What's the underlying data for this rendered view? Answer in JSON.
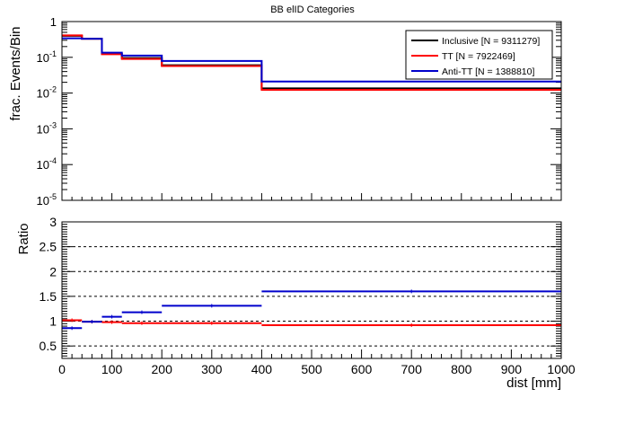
{
  "title": "BB elID Categories",
  "chart_data": [
    {
      "type": "line",
      "subtype": "step-histogram",
      "title": "BB elID Categories",
      "ylabel": "frac. Events/Bin",
      "xlabel": "",
      "yscale": "log",
      "ylim": [
        1e-05,
        1
      ],
      "xlim": [
        0,
        1000
      ],
      "y_tick_labels": [
        "1",
        "10^-1",
        "10^-2",
        "10^-3",
        "10^-4",
        "10^-5"
      ],
      "bin_edges": [
        0,
        40,
        80,
        120,
        200,
        400,
        1000
      ],
      "legend_position": "top-right",
      "series": [
        {
          "name": "Inclusive [N = 9311279]",
          "color": "#000000",
          "values": [
            0.4,
            0.33,
            0.125,
            0.095,
            0.06,
            0.0135
          ]
        },
        {
          "name": "TT [N = 7922469]",
          "color": "#ff0000",
          "values": [
            0.41,
            0.33,
            0.122,
            0.09,
            0.057,
            0.0123
          ]
        },
        {
          "name": "Anti-TT [N = 1388810]",
          "color": "#0000cc",
          "values": [
            0.34,
            0.33,
            0.135,
            0.112,
            0.079,
            0.021
          ]
        }
      ]
    },
    {
      "type": "line",
      "subtype": "step-ratio",
      "ylabel": "Ratio",
      "xlabel": "dist [mm]",
      "ylim": [
        0.25,
        3
      ],
      "xlim": [
        0,
        1000
      ],
      "y_ticks": [
        0.5,
        1,
        1.5,
        2,
        2.5,
        3
      ],
      "y_tick_labels": [
        "0.5",
        "1",
        "1.5",
        "2",
        "2.5",
        "3"
      ],
      "x_ticks": [
        0,
        100,
        200,
        300,
        400,
        500,
        600,
        700,
        800,
        900,
        1000
      ],
      "x_tick_labels": [
        "0",
        "100",
        "200",
        "300",
        "400",
        "500",
        "600",
        "700",
        "800",
        "900",
        "1000"
      ],
      "grid": "dashed horizontal at y ticks",
      "bin_edges": [
        0,
        40,
        80,
        120,
        200,
        400,
        1000
      ],
      "series": [
        {
          "name": "TT [N = 7922469]",
          "color": "#ff0000",
          "values": [
            1.02,
            0.99,
            0.98,
            0.96,
            0.96,
            0.92
          ]
        },
        {
          "name": "Anti-TT [N = 1388810]",
          "color": "#0000cc",
          "values": [
            0.86,
            0.99,
            1.09,
            1.18,
            1.31,
            1.6
          ]
        }
      ]
    }
  ]
}
